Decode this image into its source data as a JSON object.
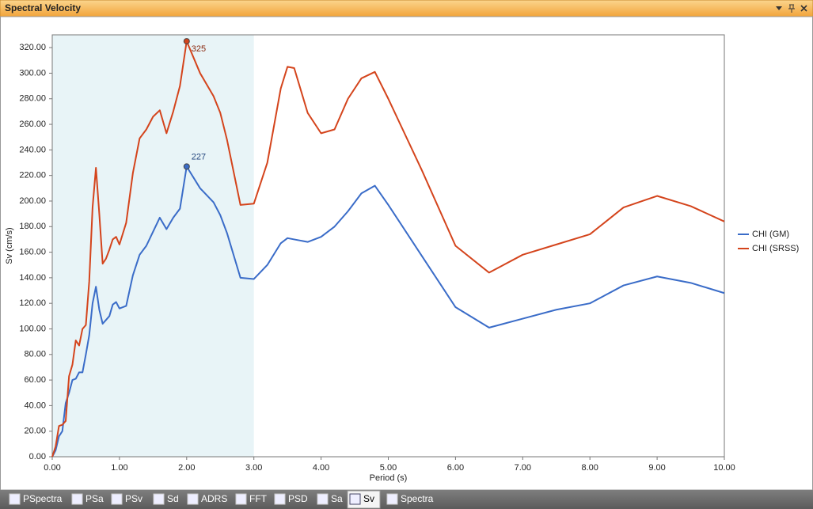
{
  "window": {
    "title": "Spectral Velocity"
  },
  "tabs": {
    "items": [
      "PSpectra",
      "PSa",
      "PSv",
      "Sd",
      "ADRS",
      "FFT",
      "PSD",
      "Sa",
      "Sv",
      "Spectra"
    ],
    "active": 8
  },
  "chart_data": {
    "type": "line",
    "xlabel": "Period (s)",
    "ylabel": "Sv (cm/s)",
    "x": [
      0,
      0.05,
      0.1,
      0.15,
      0.2,
      0.25,
      0.3,
      0.35,
      0.4,
      0.45,
      0.5,
      0.55,
      0.6,
      0.65,
      0.7,
      0.75,
      0.8,
      0.85,
      0.9,
      0.95,
      1.0,
      1.1,
      1.2,
      1.3,
      1.4,
      1.5,
      1.6,
      1.7,
      1.8,
      1.9,
      2.0,
      2.2,
      2.4,
      2.5,
      2.6,
      2.8,
      3.0,
      3.2,
      3.4,
      3.5,
      3.6,
      3.8,
      4.0,
      4.2,
      4.4,
      4.6,
      4.8,
      5.0,
      5.5,
      6.0,
      6.5,
      7.0,
      7.5,
      8.0,
      8.5,
      9.0,
      9.5,
      10.0
    ],
    "series": [
      {
        "name": "CHI (GM)",
        "color": "#3a6cc8",
        "values": [
          0,
          5,
          16,
          20,
          42,
          50,
          60,
          61,
          66,
          66,
          80,
          95,
          120,
          133,
          115,
          104,
          107,
          110,
          119,
          121,
          116,
          118,
          142,
          158,
          165,
          176,
          187,
          178,
          187,
          194,
          227,
          210,
          199,
          189,
          175,
          140,
          139,
          150,
          167,
          171,
          170,
          168,
          172,
          180,
          192,
          206,
          212,
          197,
          157,
          117,
          101,
          108,
          115,
          120,
          134,
          141,
          136,
          128
        ]
      },
      {
        "name": "CHI (SRSS)",
        "color": "#d4441c",
        "values": [
          0,
          8,
          24,
          25,
          28,
          63,
          72,
          91,
          87,
          100,
          103,
          137,
          195,
          226,
          190,
          151,
          155,
          162,
          170,
          172,
          166,
          183,
          222,
          249,
          256,
          266,
          271,
          253,
          270,
          290,
          325,
          300,
          282,
          269,
          248,
          197,
          198,
          230,
          288,
          305,
          304,
          269,
          253,
          256,
          280,
          296,
          301,
          280,
          224,
          165,
          144,
          158,
          166,
          174,
          195,
          204,
          196,
          184
        ]
      }
    ],
    "annotations": [
      {
        "label": "325",
        "x": 2.0,
        "y": 325,
        "series": 1
      },
      {
        "label": "227",
        "x": 2.0,
        "y": 227,
        "series": 0
      }
    ],
    "highlight_range": [
      0,
      3
    ],
    "highlight_color": "#e8f4f7",
    "xlim": [
      0,
      10
    ],
    "xticks": [
      {
        "value": 0,
        "label": "0.00"
      },
      {
        "value": 1,
        "label": "1.00"
      },
      {
        "value": 2,
        "label": "2.00"
      },
      {
        "value": 3,
        "label": "3.00"
      },
      {
        "value": 4,
        "label": "4.00"
      },
      {
        "value": 5,
        "label": "5.00"
      },
      {
        "value": 6,
        "label": "6.00"
      },
      {
        "value": 7,
        "label": "7.00"
      },
      {
        "value": 8,
        "label": "8.00"
      },
      {
        "value": 9,
        "label": "9.00"
      },
      {
        "value": 10,
        "label": "10.00"
      }
    ],
    "ylim": [
      0,
      330
    ],
    "yticks": [
      {
        "value": 0,
        "label": "0.00"
      },
      {
        "value": 20,
        "label": "20.00"
      },
      {
        "value": 40,
        "label": "40.00"
      },
      {
        "value": 60,
        "label": "60.00"
      },
      {
        "value": 80,
        "label": "80.00"
      },
      {
        "value": 100,
        "label": "100.00"
      },
      {
        "value": 120,
        "label": "120.00"
      },
      {
        "value": 140,
        "label": "140.00"
      },
      {
        "value": 160,
        "label": "160.00"
      },
      {
        "value": 180,
        "label": "180.00"
      },
      {
        "value": 200,
        "label": "200.00"
      },
      {
        "value": 220,
        "label": "220.00"
      },
      {
        "value": 240,
        "label": "240.00"
      },
      {
        "value": 260,
        "label": "260.00"
      },
      {
        "value": 280,
        "label": "280.00"
      },
      {
        "value": 300,
        "label": "300.00"
      },
      {
        "value": 320,
        "label": "320.00"
      }
    ],
    "grid": false,
    "legend": "right"
  }
}
